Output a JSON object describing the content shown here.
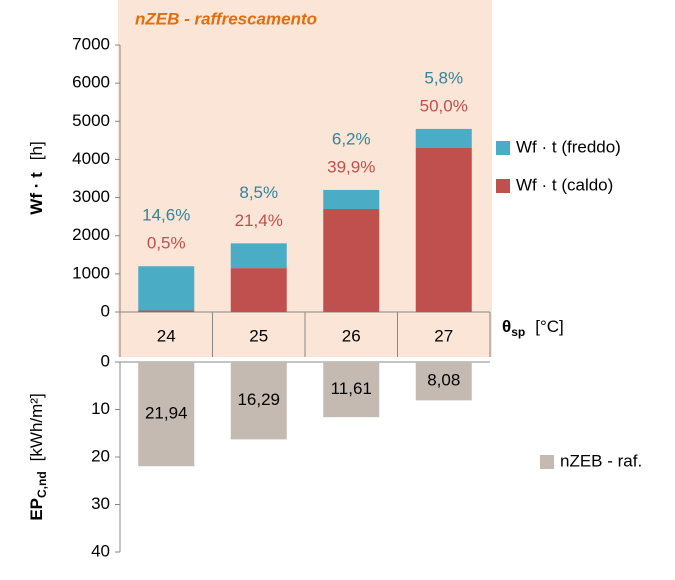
{
  "chart_data": [
    {
      "type": "stacked-bar",
      "title": "nZEB - raffrescamento",
      "y_label": {
        "main": "Wf · t",
        "unit": "[h]"
      },
      "x_label": {
        "main": "θ",
        "sub": "sp",
        "unit": "[°C]"
      },
      "categories": [
        "24",
        "25",
        "26",
        "27"
      ],
      "series": [
        {
          "name": "Wf · t (caldo)",
          "color": "#c0504d",
          "values": [
            40,
            1150,
            2700,
            4300
          ],
          "annotations": [
            "0,5%",
            "21,4%",
            "39,9%",
            "50,0%"
          ]
        },
        {
          "name": "Wf · t (freddo)",
          "color": "#4bacc6",
          "values": [
            1160,
            650,
            500,
            500
          ],
          "annotations": [
            "14,6%",
            "8,5%",
            "6,2%",
            "5,8%"
          ]
        }
      ],
      "ylim": [
        0,
        7000
      ],
      "yticks": [
        0,
        1000,
        2000,
        3000,
        4000,
        5000,
        6000,
        7000
      ]
    },
    {
      "type": "bar",
      "inverted": true,
      "y_label": {
        "main": "EP",
        "sub": "C,nd",
        "unit": "[kWh/m²]"
      },
      "series": [
        {
          "name": "nZEB - raf.",
          "color": "#c4bab2",
          "values": [
            21.94,
            16.29,
            11.61,
            8.08
          ],
          "value_labels": [
            "21,94",
            "16,29",
            "11,61",
            "8,08"
          ]
        }
      ],
      "ylim": [
        0,
        40
      ],
      "yticks": [
        0,
        10,
        20,
        30,
        40
      ]
    }
  ]
}
